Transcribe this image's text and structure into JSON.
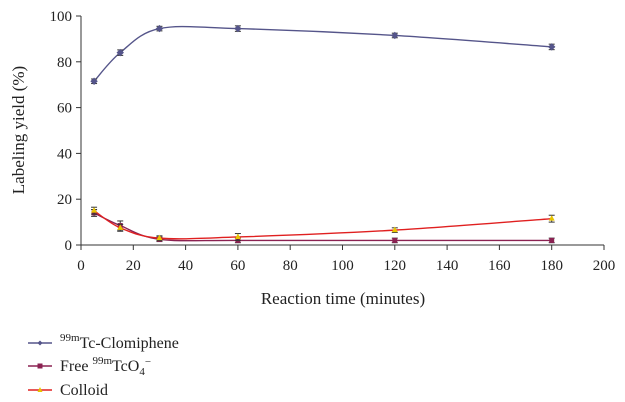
{
  "chart_data": {
    "type": "line",
    "xlabel": "Reaction time (minutes)",
    "ylabel": "Labeling yield (%)",
    "xlim": [
      0,
      200
    ],
    "ylim": [
      0,
      100
    ],
    "xticks": [
      0,
      20,
      40,
      60,
      80,
      100,
      120,
      140,
      160,
      180,
      200
    ],
    "yticks": [
      0,
      20,
      40,
      60,
      80,
      100
    ],
    "grid": false,
    "legend_position": "bottom-left",
    "series": [
      {
        "name": "99mTc-Clomiphene",
        "label_parts": {
          "sup": "99m",
          "text": "Tc-Clomiphene"
        },
        "color": "#55558a",
        "x": [
          5,
          15,
          30,
          60,
          120,
          180
        ],
        "y": [
          71.5,
          84,
          94.5,
          94.5,
          91.5,
          86.5
        ],
        "err": [
          1,
          1.2,
          1,
          1.2,
          1,
          1.2
        ]
      },
      {
        "name": "Free 99mTcO4−",
        "label_parts": {
          "pre": "Free ",
          "sup": "99m",
          "text": "TcO",
          "sub": "4",
          "sup2": "−"
        },
        "color": "#8b2252",
        "x": [
          5,
          15,
          30,
          60,
          120,
          180
        ],
        "y": [
          14,
          8.5,
          2.5,
          2,
          2,
          2
        ],
        "err": [
          1.5,
          2,
          1,
          1,
          1,
          1
        ]
      },
      {
        "name": "Colloid",
        "label_parts": {
          "text": "Colloid"
        },
        "color": "#e02020",
        "marker_color": "#e8c400",
        "x": [
          5,
          15,
          30,
          60,
          120,
          180
        ],
        "y": [
          15,
          7.5,
          3,
          3.5,
          6.5,
          11.5
        ],
        "err": [
          1.5,
          1.5,
          1,
          1.5,
          1,
          1.5
        ]
      }
    ]
  }
}
